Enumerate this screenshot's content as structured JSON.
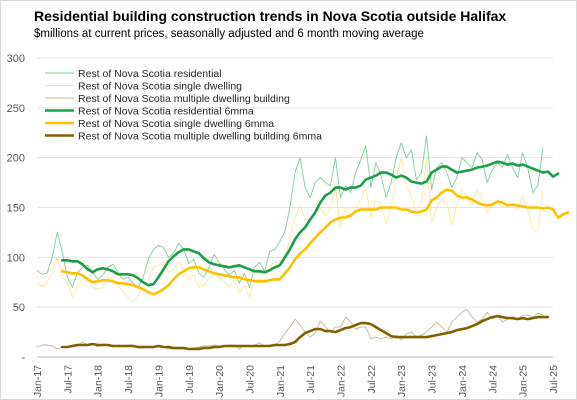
{
  "chart_data": {
    "type": "line",
    "title": "Residential building construction trends in Nova Scotia outside Halifax",
    "subtitle": "$millions at current prices, seasonally adjusted and 6 month moving average",
    "ylim": [
      0,
      300
    ],
    "yticks": [
      0,
      50,
      100,
      150,
      200,
      250,
      300
    ],
    "y_tick_labels": [
      "-",
      "50",
      "100",
      "150",
      "200",
      "250",
      "300"
    ],
    "x_start": "2017-01",
    "x_tick_labels": [
      "Jan-17",
      "Jul-17",
      "Jan-18",
      "Jul-18",
      "Jan-19",
      "Jul-19",
      "Jan-20",
      "Jul-20",
      "Jan-21",
      "Jul-21",
      "Jan-22",
      "Jul-22",
      "Jan-23",
      "Jul-23",
      "Jan-24",
      "Jul-24",
      "Jan-25",
      "Jul-25"
    ],
    "grid": "horizontal",
    "legend_position": "top-left",
    "series": [
      {
        "name": "Rest of Nova Scotia residential",
        "color": "#7fcf9a",
        "width": 0.9,
        "values": [
          87,
          83,
          84,
          100,
          125,
          105,
          80,
          70,
          85,
          90,
          92,
          85,
          78,
          82,
          90,
          93,
          85,
          78,
          80,
          74,
          70,
          80,
          98,
          108,
          112,
          110,
          100,
          104,
          114,
          108,
          94,
          98,
          84,
          80,
          90,
          103,
          95,
          88,
          82,
          87,
          74,
          84,
          70,
          90,
          95,
          86,
          106,
          108,
          116,
          126,
          150,
          185,
          200,
          170,
          160,
          175,
          180,
          175,
          172,
          200,
          160,
          172,
          165,
          185,
          198,
          212,
          170,
          195,
          182,
          160,
          175,
          200,
          215,
          200,
          208,
          178,
          185,
          222,
          168,
          190,
          195,
          185,
          170,
          180,
          200,
          195,
          190,
          205,
          198,
          175,
          188,
          195,
          190,
          203,
          190,
          180,
          205,
          190,
          165,
          172,
          210
        ]
      },
      {
        "name": "Rest of Nova Scotia single dwelling",
        "color": "#ffe699",
        "width": 0.9,
        "values": [
          75,
          70,
          75,
          86,
          100,
          80,
          75,
          60,
          72,
          78,
          80,
          70,
          68,
          70,
          80,
          78,
          72,
          66,
          60,
          55,
          62,
          70,
          78,
          90,
          92,
          96,
          85,
          88,
          95,
          88,
          78,
          83,
          70,
          72,
          78,
          85,
          80,
          76,
          70,
          78,
          65,
          72,
          60,
          78,
          78,
          76,
          92,
          95,
          96,
          100,
          118,
          140,
          152,
          138,
          138,
          145,
          150,
          142,
          148,
          170,
          130,
          150,
          140,
          150,
          158,
          170,
          140,
          158,
          152,
          133,
          150,
          180,
          200,
          172,
          162,
          145,
          155,
          198,
          135,
          150,
          158,
          155,
          132,
          152,
          168,
          160,
          152,
          168,
          160,
          145,
          152,
          155,
          150,
          155,
          152,
          148,
          162,
          148,
          128,
          125,
          168
        ]
      },
      {
        "name": "Rest of Nova Scotia multiple dwelling building",
        "color": "#c9b99a",
        "width": 0.9,
        "values": [
          10,
          12,
          12,
          11,
          8,
          10,
          10,
          12,
          12,
          15,
          12,
          13,
          10,
          13,
          12,
          10,
          12,
          11,
          12,
          12,
          9,
          9,
          10,
          10,
          11,
          10,
          8,
          8,
          8,
          8,
          8,
          9,
          10,
          11,
          11,
          12,
          11,
          11,
          12,
          12,
          8,
          12,
          10,
          12,
          14,
          11,
          12,
          12,
          16,
          24,
          30,
          38,
          32,
          25,
          20,
          24,
          36,
          30,
          25,
          30,
          30,
          40,
          35,
          28,
          30,
          30,
          18,
          20,
          18,
          20,
          18,
          22,
          17,
          23,
          25,
          20,
          22,
          25,
          30,
          35,
          30,
          25,
          35,
          40,
          45,
          48,
          40,
          35,
          38,
          45,
          38,
          42,
          35,
          38,
          40,
          38,
          42,
          42,
          40,
          44,
          42
        ]
      },
      {
        "name": "Rest of Nova Scotia residential 6mma",
        "color": "#1a9e47",
        "width": 2.6,
        "start_index": 5,
        "values": [
          97,
          97,
          96,
          96,
          93,
          88,
          85,
          88,
          89,
          88,
          86,
          83,
          83,
          83,
          82,
          79,
          75,
          72,
          73,
          80,
          88,
          96,
          101,
          105,
          108,
          108,
          106,
          104,
          99,
          95,
          93,
          92,
          91,
          90,
          91,
          92,
          90,
          88,
          86,
          86,
          85,
          87,
          90,
          92,
          100,
          108,
          118,
          125,
          130,
          138,
          145,
          155,
          162,
          165,
          170,
          170,
          168,
          170,
          170,
          172,
          178,
          180,
          182,
          185,
          185,
          183,
          180,
          182,
          180,
          176,
          175,
          174,
          176,
          185,
          188,
          191,
          191,
          188,
          185,
          186,
          187,
          188,
          190,
          191,
          192,
          194,
          196,
          195,
          193,
          194,
          192,
          193,
          191,
          189,
          187,
          185,
          186,
          181,
          184
        ]
      },
      {
        "name": "Rest of Nova Scotia single dwelling 6mma",
        "color": "#ffc000",
        "width": 2.6,
        "start_index": 5,
        "values": [
          86,
          85,
          84,
          84,
          82,
          78,
          75,
          76,
          77,
          77,
          76,
          74,
          74,
          73,
          72,
          70,
          68,
          65,
          63,
          65,
          68,
          72,
          78,
          83,
          86,
          89,
          90,
          90,
          88,
          86,
          84,
          83,
          82,
          81,
          80,
          80,
          78,
          77,
          76,
          76,
          76,
          77,
          78,
          78,
          84,
          90,
          98,
          104,
          108,
          114,
          120,
          125,
          130,
          135,
          138,
          140,
          140,
          142,
          146,
          148,
          148,
          148,
          148,
          150,
          150,
          150,
          150,
          148,
          148,
          146,
          145,
          146,
          148,
          157,
          160,
          165,
          168,
          167,
          162,
          160,
          160,
          158,
          155,
          153,
          152,
          153,
          156,
          155,
          152,
          153,
          152,
          151,
          150,
          150,
          150,
          149,
          150,
          148,
          140,
          143,
          145
        ]
      },
      {
        "name": "Rest of Nova Scotia multiple dwelling building 6mma",
        "color": "#806000",
        "width": 2.6,
        "start_index": 5,
        "values": [
          10,
          10,
          11,
          12,
          12,
          12,
          13,
          12,
          12,
          12,
          11,
          11,
          11,
          11,
          11,
          10,
          10,
          10,
          10,
          11,
          10,
          10,
          9,
          9,
          9,
          8,
          8,
          8,
          9,
          9,
          10,
          10,
          11,
          11,
          11,
          11,
          11,
          11,
          11,
          11,
          11,
          11,
          12,
          12,
          12,
          13,
          15,
          20,
          24,
          26,
          28,
          28,
          26,
          26,
          25,
          27,
          29,
          30,
          32,
          34,
          34,
          33,
          30,
          27,
          24,
          21,
          20,
          20,
          20,
          20,
          20,
          20,
          20,
          21,
          22,
          23,
          24,
          25,
          27,
          28,
          29,
          31,
          33,
          36,
          38,
          40,
          41,
          40,
          39,
          39,
          38,
          39,
          38,
          39,
          40,
          40,
          40
        ]
      }
    ]
  }
}
